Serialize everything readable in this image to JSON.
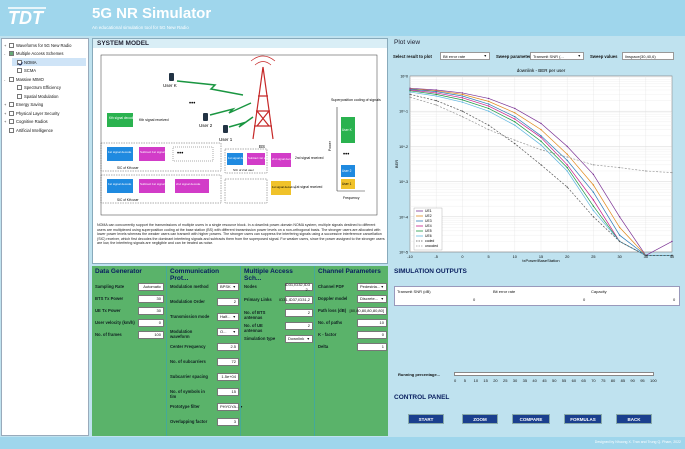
{
  "app": {
    "title": "5G NR Simulator",
    "subtitle": "An educational simulation tool for 5G New Radio",
    "logo_text": "TDT"
  },
  "tree": [
    {
      "label": "Waveforms for 5G New Radio",
      "toggle": "+",
      "check": "off",
      "indent": 0
    },
    {
      "label": "Multiple Access Schemes",
      "toggle": "-",
      "check": "part",
      "indent": 0
    },
    {
      "label": "NOMA",
      "toggle": "",
      "check": "on",
      "indent": 1,
      "selected": true
    },
    {
      "label": "SCMA",
      "toggle": "",
      "check": "off",
      "indent": 1
    },
    {
      "label": "Massive MIMO",
      "toggle": "-",
      "check": "off",
      "indent": 0
    },
    {
      "label": "Spectrum Efficiency",
      "toggle": "",
      "check": "off",
      "indent": 1
    },
    {
      "label": "Spatial Modulation",
      "toggle": "",
      "check": "off",
      "indent": 1
    },
    {
      "label": "Energy Saving",
      "toggle": "+",
      "check": "off",
      "indent": 0
    },
    {
      "label": "Physical Layer Security",
      "toggle": "+",
      "check": "off",
      "indent": 0
    },
    {
      "label": "Cognitive Radios",
      "toggle": "+",
      "check": "off",
      "indent": 0
    },
    {
      "label": "Artificial Intelligence",
      "toggle": "",
      "check": "off",
      "indent": 0
    }
  ],
  "system_model": {
    "title": "SYSTEM MODEL",
    "labels": {
      "user_k": "User K",
      "user2": "User 2",
      "user1": "User 1",
      "bs": "BS",
      "kth_decoding": "Kth signal decoding",
      "kth_received": "Kth signal received",
      "first_decode": "1st signal decode",
      "subtract_first": "Subtract 1st signal",
      "second_decode": "2nd signal decode",
      "subtract_second": "Subtract 2nd signal",
      "sic_kth": "SIC of Kth user",
      "sic_kth2": "SIC of Kth user",
      "sic_2nd": "SIC of 2nd user",
      "second_decoding": "2nd signal decoding",
      "second_received": "2nd signal received",
      "first_decoding": "1st signal decoding",
      "first_received": "1st signal received",
      "superposition": "Superposition coding of signals",
      "user_k_box": "User K",
      "user2_box": "User 2",
      "user1_box": "User 1",
      "power": "Power",
      "frequency": "Frequency",
      "dots": "•••"
    },
    "description": "NOMA can concurrently support the transmissions of multiple users in a single resource block. In a downlink power-domain NOMA system, multiple signals destined to different users are multiplexed using superposition coding at the base station (BS) with different transmission power levels on a non-orthogonal basis. The stronger users are allocated with lower power levels whereas the weaker users can transmit with higher powers. The stronger users can suppress the interfering signals using a successive interference cancellation (SIC) receiver, which first decodes the dominant interfering signals and subtracts them from the superposed signal. For weaker users, since the power assigned to the stronger users are low, the interfering signals are negligible and can be treated as noise."
  },
  "plot_view": {
    "title": "Plot view",
    "select_label": "Select result to plot",
    "select_value": "Bit error rate",
    "sweep_param_label": "Sweep parameter",
    "sweep_param_value": "Transmit SNR (...",
    "sweep_values_label": "Sweep values",
    "sweep_values_value": "linspace(30,40,6)"
  },
  "chart_data": {
    "type": "line",
    "title": "downlink - BER per user",
    "xlabel": "txPower/BaseStation",
    "ylabel": "BER",
    "x": [
      -10,
      -5,
      0,
      5,
      10,
      15,
      20,
      25,
      30,
      35,
      40
    ],
    "xlim": [
      -10,
      40
    ],
    "ylim": [
      1e-05,
      1
    ],
    "yscale": "log",
    "xticks": [
      "-10",
      "-5",
      "0",
      "5",
      "10",
      "15",
      "20",
      "25",
      "30",
      "35",
      "40"
    ],
    "yticks": [
      "10^0",
      "10^-1",
      "10^-2",
      "10^-3",
      "10^-4",
      "10^-5"
    ],
    "legend_position": "bottom-left",
    "series": [
      {
        "name": "UE1",
        "color": "#7b3294",
        "style": "solid",
        "values": [
          0.45,
          0.4,
          0.33,
          0.23,
          0.12,
          0.045,
          0.01,
          0.0016,
          0.0001,
          8e-06,
          2e-05
        ]
      },
      {
        "name": "UE2",
        "color": "#e08a1f",
        "style": "solid",
        "values": [
          0.43,
          0.38,
          0.3,
          0.19,
          0.09,
          0.03,
          0.006,
          0.0008,
          5e-05,
          8e-06,
          8e-06
        ]
      },
      {
        "name": "UE3",
        "color": "#2c7bb6",
        "style": "solid",
        "values": [
          0.42,
          0.36,
          0.27,
          0.16,
          0.07,
          0.02,
          0.004,
          0.0005,
          3e-05,
          8e-06,
          8e-06
        ]
      },
      {
        "name": "UE4",
        "color": "#c51b8a",
        "style": "solid",
        "values": [
          0.4,
          0.33,
          0.24,
          0.14,
          0.06,
          0.018,
          0.003,
          0.0003,
          2e-05,
          8e-06,
          8e-06
        ]
      },
      {
        "name": "UE5",
        "color": "#1a9641",
        "style": "solid",
        "values": [
          0.38,
          0.3,
          0.21,
          0.12,
          0.05,
          0.014,
          0.0025,
          0.0002,
          2e-05,
          8e-06,
          8e-06
        ]
      },
      {
        "name": "UE6",
        "color": "#5fb6e0",
        "style": "solid",
        "values": [
          0.35,
          0.27,
          0.18,
          0.1,
          0.04,
          0.011,
          0.002,
          0.00015,
          2e-05,
          8e-06,
          8e-06
        ]
      },
      {
        "name": "coded",
        "color": "#555555",
        "style": "dash",
        "values": [
          0.3,
          0.2,
          0.1,
          0.04,
          0.012,
          0.003,
          0.0007,
          0.0001,
          2e-05,
          8e-06,
          8e-06
        ]
      },
      {
        "name": "uncoded",
        "color": "#999999",
        "style": "dash",
        "values": [
          0.25,
          0.15,
          0.07,
          0.03,
          0.015,
          0.008,
          0.005,
          0.003,
          0.0025,
          0.002,
          0.0018
        ]
      }
    ]
  },
  "data_generator": {
    "title": "Data Generator",
    "rows": [
      {
        "label": "Sampling Rate",
        "value": "Automatic"
      },
      {
        "label": "BTS Tx Power",
        "value": "30"
      },
      {
        "label": "UE Tx Power",
        "value": "30"
      },
      {
        "label": "User velocity (km/h)",
        "value": "0"
      },
      {
        "label": "No. of frames",
        "value": "100"
      }
    ]
  },
  "communication": {
    "title": "Communication Prot...",
    "rows": [
      {
        "label": "Modulation method",
        "value": "BPSK",
        "kind": "dd"
      },
      {
        "label": "Modulation Order",
        "value": "2",
        "kind": "tx"
      },
      {
        "label": "Transmission mode",
        "value": "Half...",
        "kind": "dd"
      },
      {
        "label": "Modulation waveform",
        "value": "O...",
        "kind": "dd"
      },
      {
        "label": "Center Frequency",
        "value": "2.5",
        "kind": "tx"
      },
      {
        "label": "No. of subcarriers",
        "value": "72",
        "kind": "tx"
      },
      {
        "label": "Subcarrier spacing",
        "value": "1.5e+04",
        "kind": "tx"
      },
      {
        "label": "No. of symbols in tim",
        "value": "15",
        "kind": "tx"
      },
      {
        "label": "Prototype filter",
        "value": "PHYDYA...",
        "kind": "dd"
      },
      {
        "label": "Overlapping factor",
        "value": "3",
        "kind": "tx"
      }
    ]
  },
  "multiple_access": {
    "title": "Multiple Access Sch...",
    "rows": [
      {
        "label": "Nodes",
        "value": "ID31,ID32,ID3 2..",
        "kind": "tx"
      },
      {
        "label": "Primary Links",
        "value": "ID31,ID37,ID31,2",
        "kind": "tx"
      },
      {
        "label": "No. of BTS antennas",
        "value": "2",
        "kind": "tx"
      },
      {
        "label": "No. of UE antennas",
        "value": "2",
        "kind": "tx"
      },
      {
        "label": "Simulation type",
        "value": "Downlink",
        "kind": "dd"
      }
    ]
  },
  "channel": {
    "title": "Channel Parameters",
    "rows": [
      {
        "label": "Channel PDF",
        "value": "Pedestria...",
        "kind": "dd"
      },
      {
        "label": "Doppler model",
        "value": "Discrete...",
        "kind": "dd"
      },
      {
        "label": "Path loss (dB)",
        "value": "[80,80,80,80,80,80]",
        "kind": "tx"
      },
      {
        "label": "No. of paths",
        "value": "10",
        "kind": "tx"
      },
      {
        "label": "K - factor",
        "value": "0",
        "kind": "tx"
      },
      {
        "label": "Delta",
        "value": "1",
        "kind": "tx"
      }
    ]
  },
  "sim_outputs": {
    "title": "SIMULATION OUTPUTS",
    "columns": [
      "Transmit SNR (dB)",
      "Bit error rate",
      "Capacity"
    ],
    "values": [
      "0",
      "0",
      "0"
    ],
    "progress_label": "Running percentage...",
    "progress": 0,
    "progress_ticks": [
      "0",
      "5",
      "10",
      "15",
      "20",
      "25",
      "30",
      "35",
      "40",
      "45",
      "50",
      "55",
      "60",
      "65",
      "70",
      "75",
      "80",
      "85",
      "90",
      "95",
      "100"
    ]
  },
  "control": {
    "title": "CONTROL PANEL",
    "buttons": [
      "START",
      "ZOOM",
      "COMPARE",
      "FORMULAS",
      "BACK"
    ]
  },
  "footer": {
    "text": "Designed by Nhuong X. Tran and Trung Q. Pham, 2022"
  },
  "colors": {
    "header": "#9fd6ec",
    "background": "#bfe2ef",
    "params_panel": "#5ab36a",
    "button": "#1a3f8e",
    "user_k_block": "#2ab24f",
    "subtract_block": "#d23cc8",
    "decode_block": "#1f8ae0",
    "first_decode_block": "#f0c22a",
    "superpos_green": "#2ab24f",
    "superpos_blue": "#1f8ae0",
    "superpos_yellow": "#f0c22a"
  }
}
